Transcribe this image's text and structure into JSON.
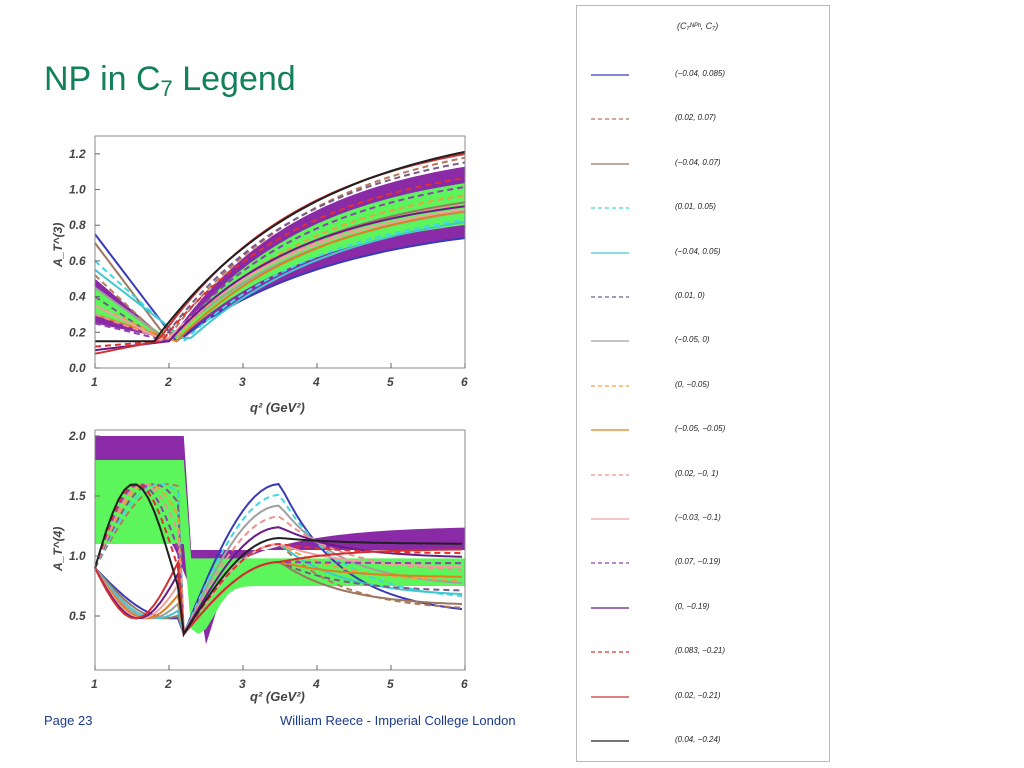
{
  "slide": {
    "title_main": "NP in C",
    "title_sub": "7",
    "title_end": " Legend",
    "page": "Page 23",
    "author": "William Reece - Imperial College London"
  },
  "chart_data": [
    {
      "type": "line",
      "ylabel": "A_T^(3)",
      "xlabel": "q² (GeV²)",
      "xlim": [
        1,
        6
      ],
      "ylim": [
        0,
        1.3
      ],
      "xticks": [
        "1",
        "2",
        "3",
        "4",
        "5",
        "6"
      ],
      "yticks": [
        "0.0",
        "0.2",
        "0.4",
        "0.6",
        "0.8",
        "1.0",
        "1.2"
      ],
      "ytick_values": [
        0,
        0.2,
        0.4,
        0.6,
        0.8,
        1.0,
        1.2
      ]
    },
    {
      "type": "line",
      "ylabel": "A_T^(4)",
      "xlabel": "q² (GeV²)",
      "xlim": [
        1,
        6
      ],
      "ylim": [
        0.05,
        2.05
      ],
      "xticks": [
        "1",
        "2",
        "3",
        "4",
        "5",
        "6"
      ],
      "yticks": [
        "0.5",
        "1.0",
        "1.5",
        "2.0"
      ],
      "ytick_values": [
        0.5,
        1.0,
        1.5,
        2.0
      ]
    }
  ],
  "legend": {
    "header": "(C₇ᴺᴾʰ, C₇)",
    "items": [
      {
        "label": "(−0.04, 0.085)",
        "color": "#3a3ab8",
        "dash": false
      },
      {
        "label": "(0.02, 0.07)",
        "color": "#b4785a",
        "dash": true
      },
      {
        "label": "(−0.04, 0.07)",
        "color": "#9c7860",
        "dash": false
      },
      {
        "label": "(0.01, 0.05)",
        "color": "#40d8e0",
        "dash": true
      },
      {
        "label": "(−0.04, 0.05)",
        "color": "#40c8d0",
        "dash": false
      },
      {
        "label": "(0.01, 0)",
        "color": "#7a5a8a",
        "dash": true
      },
      {
        "label": "(−0.05, 0)",
        "color": "#a0a0a0",
        "dash": false
      },
      {
        "label": "(0, −0.05)",
        "color": "#f0a040",
        "dash": true
      },
      {
        "label": "(−0.05, −0.05)",
        "color": "#e08020",
        "dash": false
      },
      {
        "label": "(0.02, −0, 1)",
        "color": "#f09090",
        "dash": true
      },
      {
        "label": "(−0.03, −0.1)",
        "color": "#f0a0a0",
        "dash": false
      },
      {
        "label": "(0.07, −0.19)",
        "color": "#9040b0",
        "dash": true
      },
      {
        "label": "(0, −0.19)",
        "color": "#6a1a8a",
        "dash": false
      },
      {
        "label": "(0.083, −0.21)",
        "color": "#e03030",
        "dash": true
      },
      {
        "label": "(0.02, −0.21)",
        "color": "#d03030",
        "dash": false
      },
      {
        "label": "(0.04, −0.24)",
        "color": "#202020",
        "dash": false
      }
    ]
  }
}
